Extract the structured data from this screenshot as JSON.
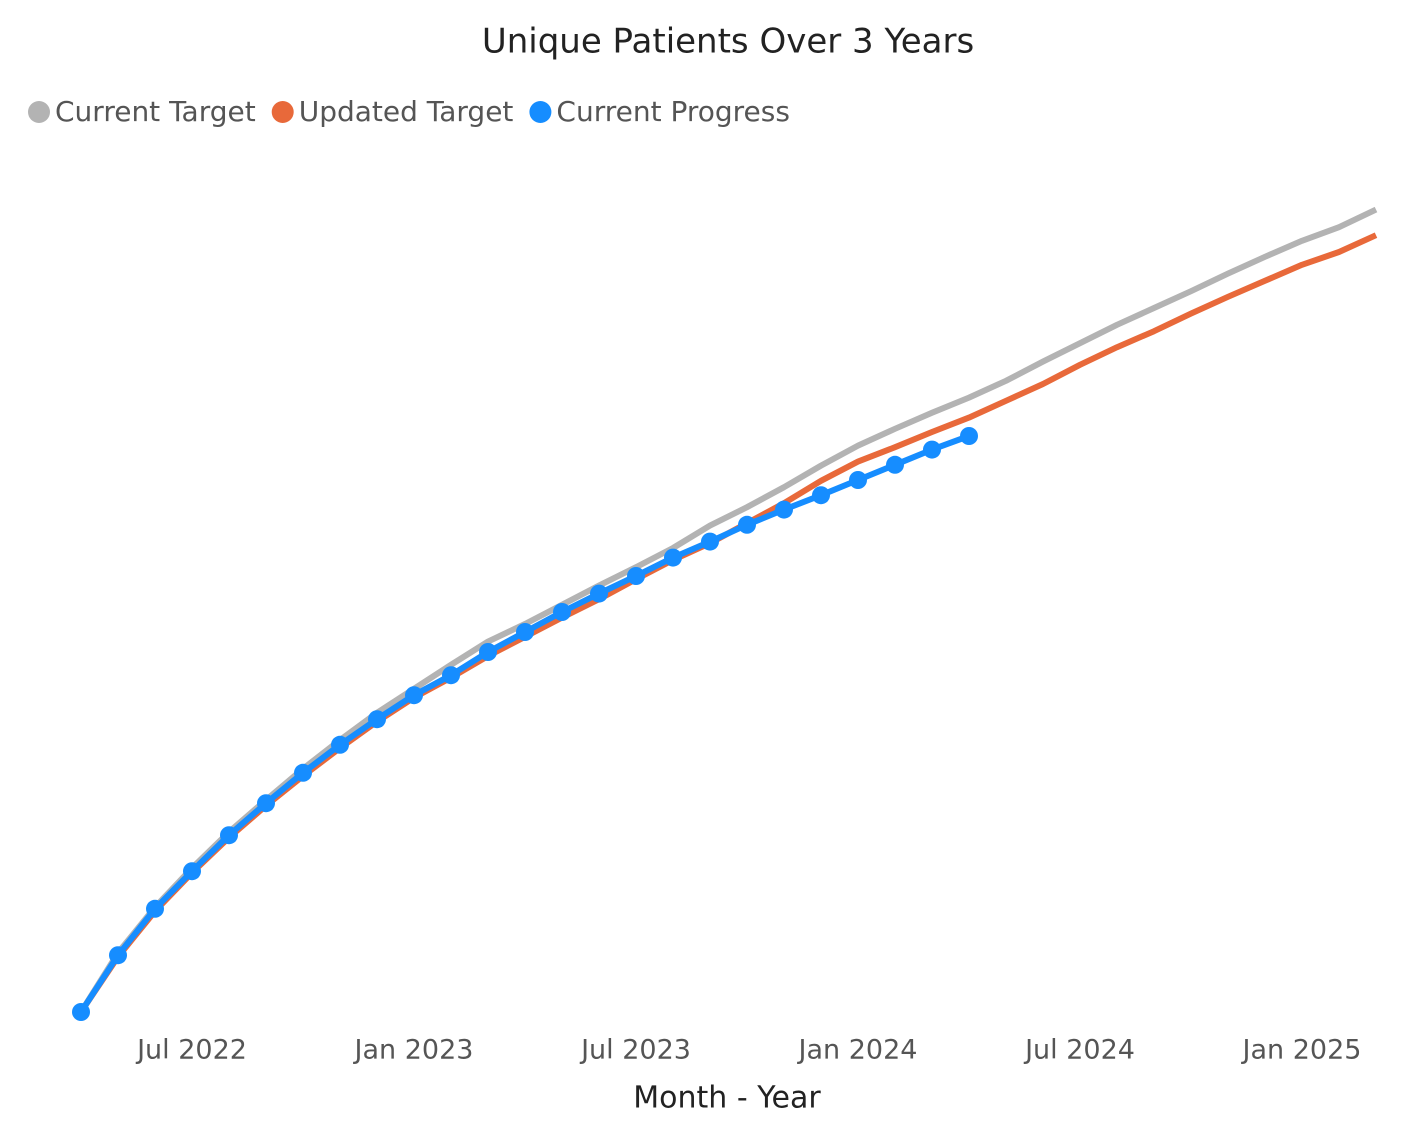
{
  "chart_data": {
    "type": "line",
    "title": "Unique Patients Over 3 Years",
    "x_label": "Month - Year",
    "x": [
      "2022-04",
      "2022-05",
      "2022-06",
      "2022-07",
      "2022-08",
      "2022-09",
      "2022-10",
      "2022-11",
      "2022-12",
      "2023-01",
      "2023-02",
      "2023-03",
      "2023-04",
      "2023-05",
      "2023-06",
      "2023-07",
      "2023-08",
      "2023-09",
      "2023-10",
      "2023-11",
      "2023-12",
      "2024-01",
      "2024-02",
      "2024-03",
      "2024-04",
      "2024-05",
      "2024-06",
      "2024-07",
      "2024-08",
      "2024-09",
      "2024-10",
      "2024-11",
      "2024-12",
      "2025-01",
      "2025-02",
      "2025-03"
    ],
    "xlim": [
      "2022-04",
      "2025-03"
    ],
    "xticks": [
      {
        "value": "2022-07",
        "label": "Jul 2022"
      },
      {
        "value": "2023-01",
        "label": "Jan 2023"
      },
      {
        "value": "2023-07",
        "label": "Jul 2023"
      },
      {
        "value": "2024-01",
        "label": "Jan 2024"
      },
      {
        "value": "2024-07",
        "label": "Jul 2024"
      },
      {
        "value": "2025-01",
        "label": "Jan 2025"
      }
    ],
    "ylim": [
      0,
      105
    ],
    "series": [
      {
        "name": "Current Target",
        "color": "#b3b3b3",
        "markers": false,
        "values": [
          0,
          7.4,
          13.1,
          18,
          22.5,
          26.5,
          30.4,
          34,
          37.4,
          40.4,
          43.4,
          46.3,
          48.5,
          50.9,
          53.3,
          55.6,
          58,
          60.8,
          63.1,
          65.6,
          68.3,
          70.8,
          72.9,
          74.9,
          76.8,
          78.9,
          81.3,
          83.6,
          85.9,
          88,
          90.1,
          92.3,
          94.4,
          96.4,
          98.1,
          100.3
        ]
      },
      {
        "name": "Updated Target",
        "color": "#e8693a",
        "markers": false,
        "values": [
          0,
          6.9,
          12.6,
          17.4,
          21.8,
          25.8,
          29.5,
          33,
          36.3,
          39.3,
          41.8,
          44.5,
          46.9,
          49.3,
          51.6,
          54.1,
          56.5,
          58.6,
          61.1,
          63.6,
          66.4,
          68.8,
          70.6,
          72.5,
          74.3,
          76.4,
          78.5,
          80.9,
          83.1,
          85.1,
          87.3,
          89.4,
          91.4,
          93.4,
          95,
          97.1
        ]
      },
      {
        "name": "Current Progress",
        "color": "#168dff",
        "markers": true,
        "values": [
          0,
          7.1,
          12.9,
          17.6,
          22.1,
          26.1,
          29.9,
          33.4,
          36.6,
          39.6,
          42.1,
          45,
          47.5,
          50,
          52.3,
          54.5,
          56.8,
          58.8,
          60.9,
          62.8,
          64.6,
          66.5,
          68.4,
          70.3,
          72,
          null,
          null,
          null,
          null,
          null,
          null,
          null,
          null,
          null,
          null,
          null
        ]
      }
    ]
  }
}
